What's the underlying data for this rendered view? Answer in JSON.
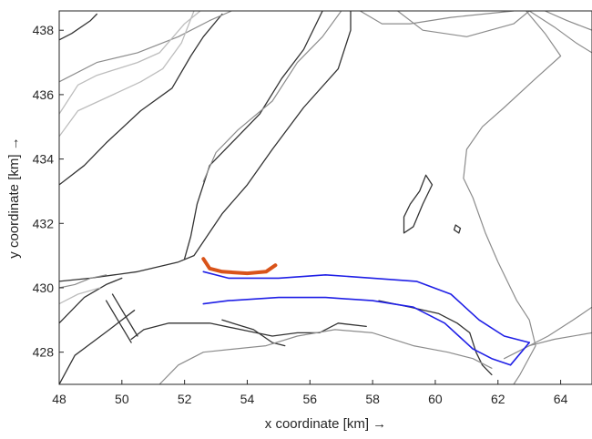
{
  "chart_data": {
    "type": "map",
    "xlabel": "x coordinate [km] →",
    "ylabel": "y coordinate [km] →",
    "xlim": [
      48,
      65
    ],
    "ylim": [
      427,
      438.6
    ],
    "xticks": [
      "48",
      "50",
      "52",
      "54",
      "56",
      "58",
      "60",
      "62",
      "64"
    ],
    "yticks": [
      "428",
      "430",
      "432",
      "434",
      "436",
      "438"
    ],
    "colors": {
      "dark_contour": "#333333",
      "mid_contour": "#8c8c8c",
      "light_contour": "#bdbdbd",
      "channel": "#1f1fe6",
      "dike": "#d95319"
    },
    "layers": [
      {
        "name": "dark-contour",
        "color": "#333333",
        "lines": [
          [
            [
              48,
              437.7
            ],
            [
              48.4,
              437.9
            ],
            [
              49,
              438.3
            ],
            [
              49.2,
              438.5
            ]
          ],
          [
            [
              48,
              433.2
            ],
            [
              48.8,
              433.8
            ],
            [
              49.5,
              434.5
            ],
            [
              50.6,
              435.5
            ],
            [
              51.6,
              436.2
            ],
            [
              52.2,
              437.2
            ],
            [
              52.6,
              437.8
            ],
            [
              53.2,
              438.5
            ]
          ],
          [
            [
              48,
              430.2
            ],
            [
              49,
              430.3
            ],
            [
              50.5,
              430.5
            ],
            [
              51.8,
              430.8
            ],
            [
              52.3,
              431.0
            ],
            [
              53.2,
              432.3
            ],
            [
              54,
              433.2
            ],
            [
              54.8,
              434.3
            ],
            [
              55.8,
              435.6
            ],
            [
              56.9,
              436.8
            ],
            [
              57.3,
              438.0
            ],
            [
              57.3,
              438.6
            ]
          ],
          [
            [
              52.0,
              430.9
            ],
            [
              52.2,
              431.6
            ],
            [
              52.4,
              432.6
            ],
            [
              52.8,
              433.8
            ],
            [
              53.6,
              434.6
            ],
            [
              54.4,
              435.4
            ],
            [
              55.1,
              436.5
            ],
            [
              55.8,
              437.4
            ],
            [
              56.4,
              438.6
            ]
          ],
          [
            [
              48,
              428.9
            ],
            [
              48.8,
              429.7
            ],
            [
              49.5,
              430.1
            ],
            [
              50.0,
              430.3
            ]
          ],
          [
            [
              48,
              427.0
            ],
            [
              48.5,
              427.9
            ],
            [
              49.6,
              428.7
            ],
            [
              50.4,
              429.3
            ]
          ],
          [
            [
              50.3,
              428.4
            ],
            [
              50.7,
              428.7
            ],
            [
              51.5,
              428.9
            ],
            [
              52.3,
              428.9
            ],
            [
              52.8,
              428.9
            ],
            [
              53.8,
              428.7
            ],
            [
              54.8,
              428.5
            ],
            [
              55.6,
              428.6
            ],
            [
              56.3,
              428.6
            ],
            [
              56.9,
              428.9
            ],
            [
              57.8,
              428.8
            ]
          ],
          [
            [
              53.2,
              429.0
            ],
            [
              54.2,
              428.7
            ],
            [
              54.8,
              428.3
            ],
            [
              55.2,
              428.2
            ]
          ],
          [
            [
              58.2,
              429.6
            ],
            [
              59.2,
              429.4
            ],
            [
              60.1,
              429.2
            ],
            [
              60.7,
              428.9
            ],
            [
              61.1,
              428.6
            ],
            [
              61.3,
              428.0
            ],
            [
              61.5,
              427.6
            ],
            [
              61.8,
              427.3
            ]
          ],
          [
            [
              59.7,
              433.5
            ],
            [
              59.5,
              433.0
            ],
            [
              59.2,
              432.6
            ],
            [
              59.0,
              432.2
            ],
            [
              59.0,
              431.7
            ],
            [
              59.3,
              431.9
            ],
            [
              59.6,
              432.6
            ],
            [
              59.9,
              433.2
            ],
            [
              59.7,
              433.5
            ]
          ],
          [
            [
              60.65,
              431.95
            ],
            [
              60.8,
              431.85
            ],
            [
              60.75,
              431.7
            ],
            [
              60.6,
              431.8
            ],
            [
              60.65,
              431.95
            ]
          ],
          [
            [
              49.7,
              429.8
            ],
            [
              50.5,
              428.5
            ]
          ],
          [
            [
              49.5,
              429.6
            ],
            [
              50.3,
              428.3
            ]
          ]
        ]
      },
      {
        "name": "mid-contour",
        "color": "#8c8c8c",
        "lines": [
          [
            [
              48,
              436.4
            ],
            [
              49.2,
              437.0
            ],
            [
              50.5,
              437.3
            ],
            [
              51.8,
              437.8
            ],
            [
              52.8,
              438.3
            ],
            [
              53.5,
              438.6
            ]
          ],
          [
            [
              48,
              430.0
            ],
            [
              48.5,
              430.1
            ],
            [
              49.0,
              430.3
            ],
            [
              49.5,
              430.4
            ]
          ],
          [
            [
              52.6,
              433.3
            ],
            [
              53.0,
              434.2
            ],
            [
              53.7,
              434.9
            ],
            [
              54.8,
              435.8
            ],
            [
              55.6,
              437.0
            ],
            [
              56.4,
              437.8
            ],
            [
              57.0,
              438.6
            ]
          ],
          [
            [
              51.2,
              427.0
            ],
            [
              51.8,
              427.6
            ],
            [
              52.6,
              428.0
            ],
            [
              53.6,
              428.1
            ],
            [
              54.6,
              428.2
            ],
            [
              55.6,
              428.5
            ],
            [
              56.8,
              428.7
            ],
            [
              58.0,
              428.6
            ],
            [
              59.3,
              428.2
            ],
            [
              60.4,
              428.0
            ],
            [
              61.2,
              427.8
            ],
            [
              61.8,
              427.5
            ]
          ],
          [
            [
              57.6,
              438.6
            ],
            [
              58.3,
              438.2
            ],
            [
              59.2,
              438.2
            ],
            [
              60.5,
              438.4
            ],
            [
              62.5,
              438.6
            ]
          ],
          [
            [
              58.8,
              438.6
            ],
            [
              59.6,
              438.0
            ],
            [
              61.0,
              437.8
            ],
            [
              62.5,
              438.2
            ],
            [
              63.0,
              438.6
            ]
          ],
          [
            [
              63.0,
              438.6
            ],
            [
              63.8,
              438.1
            ],
            [
              64.5,
              437.6
            ],
            [
              65.0,
              437.3
            ]
          ],
          [
            [
              63.5,
              438.6
            ],
            [
              64.2,
              438.3
            ],
            [
              65.0,
              438.0
            ]
          ],
          [
            [
              62.9,
              438.6
            ],
            [
              63.5,
              437.9
            ],
            [
              64.0,
              437.2
            ],
            [
              63.2,
              436.5
            ],
            [
              62.2,
              435.6
            ],
            [
              61.5,
              435.0
            ],
            [
              61.0,
              434.3
            ],
            [
              60.9,
              433.4
            ],
            [
              61.2,
              432.8
            ],
            [
              61.6,
              431.7
            ],
            [
              62.0,
              430.8
            ],
            [
              62.6,
              429.6
            ],
            [
              63.0,
              429.0
            ],
            [
              63.2,
              428.2
            ],
            [
              62.7,
              427.3
            ],
            [
              62.5,
              427.0
            ]
          ],
          [
            [
              62.2,
              427.8
            ],
            [
              62.6,
              428.0
            ],
            [
              63.6,
              428.5
            ],
            [
              64.4,
              429.0
            ],
            [
              65.0,
              429.4
            ]
          ],
          [
            [
              63.0,
              428.2
            ],
            [
              63.8,
              428.4
            ],
            [
              65.0,
              428.6
            ]
          ]
        ]
      },
      {
        "name": "light-contour",
        "color": "#bdbdbd",
        "lines": [
          [
            [
              48,
              435.4
            ],
            [
              48.6,
              436.3
            ],
            [
              49.2,
              436.6
            ],
            [
              50.5,
              437.0
            ],
            [
              51.2,
              437.3
            ],
            [
              52.0,
              438.2
            ],
            [
              52.5,
              438.6
            ]
          ],
          [
            [
              48,
              434.7
            ],
            [
              48.6,
              435.5
            ],
            [
              49.5,
              435.9
            ],
            [
              50.6,
              436.4
            ],
            [
              51.3,
              436.8
            ],
            [
              51.9,
              437.6
            ],
            [
              52.3,
              438.6
            ]
          ],
          [
            [
              48,
              429.5
            ],
            [
              48.6,
              429.8
            ],
            [
              49.3,
              430.0
            ]
          ]
        ]
      },
      {
        "name": "channel",
        "color": "#1f1fe6",
        "lines": [
          [
            [
              52.6,
              430.5
            ],
            [
              53.4,
              430.3
            ],
            [
              55.0,
              430.3
            ],
            [
              56.5,
              430.4
            ],
            [
              58.0,
              430.3
            ],
            [
              59.4,
              430.2
            ],
            [
              60.5,
              429.8
            ],
            [
              61.4,
              429.0
            ],
            [
              62.2,
              428.5
            ],
            [
              63.0,
              428.3
            ]
          ],
          [
            [
              52.6,
              429.5
            ],
            [
              53.4,
              429.6
            ],
            [
              55.0,
              429.7
            ],
            [
              56.5,
              429.7
            ],
            [
              58.0,
              429.6
            ],
            [
              59.3,
              429.4
            ],
            [
              60.3,
              428.9
            ],
            [
              61.2,
              428.1
            ],
            [
              61.8,
              427.8
            ],
            [
              62.4,
              427.6
            ],
            [
              63.0,
              428.3
            ]
          ]
        ]
      },
      {
        "name": "dike",
        "color": "#d95319",
        "lines": [
          [
            [
              52.6,
              430.9
            ],
            [
              52.8,
              430.6
            ],
            [
              53.2,
              430.5
            ],
            [
              54.0,
              430.45
            ],
            [
              54.6,
              430.5
            ],
            [
              54.9,
              430.7
            ]
          ]
        ]
      }
    ]
  }
}
